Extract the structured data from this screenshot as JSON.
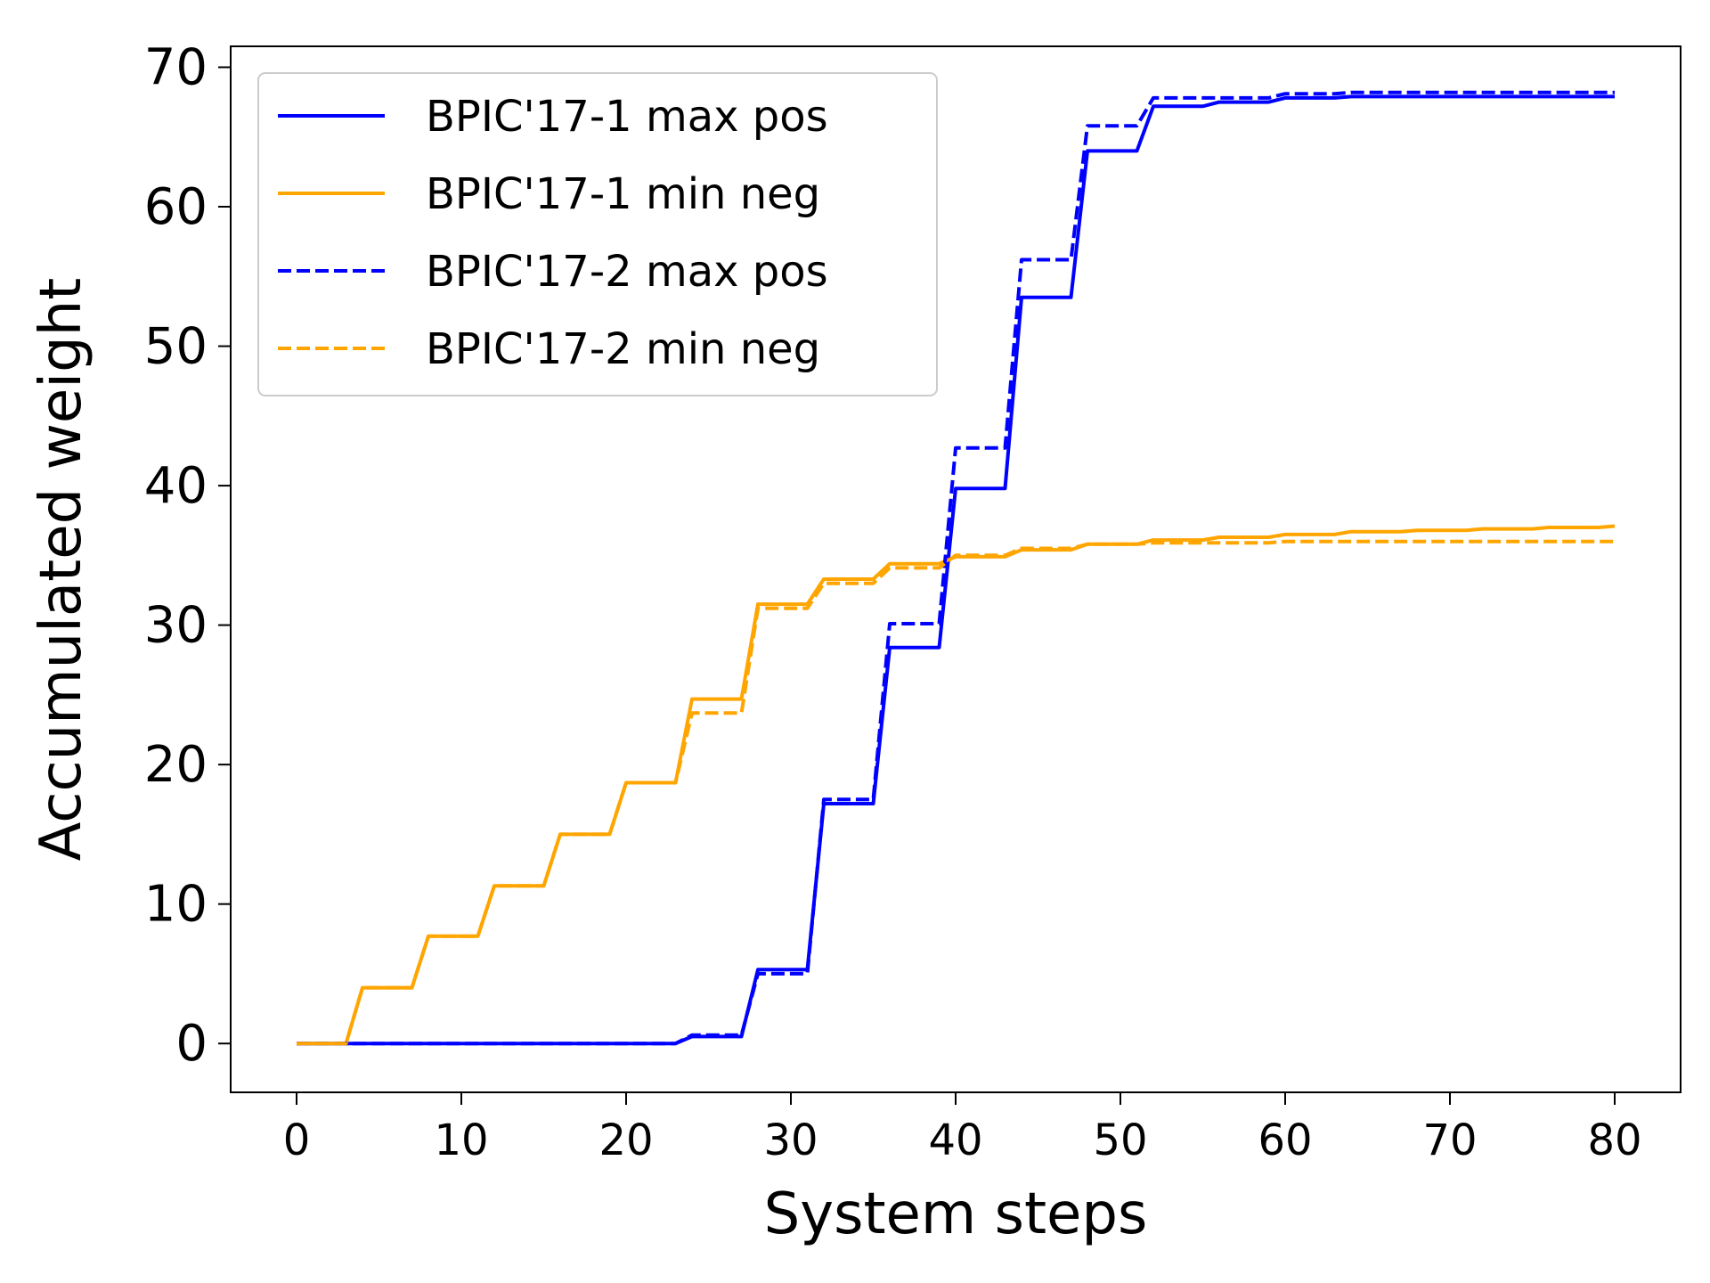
{
  "chart_data": {
    "type": "line",
    "xlabel": "System steps",
    "ylabel": "Accumulated weight",
    "xlim": [
      -4,
      84
    ],
    "ylim": [
      -3.5,
      71.5
    ],
    "xticks": [
      0,
      10,
      20,
      30,
      40,
      50,
      60,
      70,
      80
    ],
    "yticks": [
      0,
      10,
      20,
      30,
      40,
      50,
      60,
      70
    ],
    "grid": false,
    "legend_position": "top-left",
    "series": [
      {
        "name": "BPIC'17-1 max pos",
        "color": "#0000ff",
        "style": "solid",
        "points": [
          [
            0,
            0
          ],
          [
            23,
            0
          ],
          [
            24,
            0.5
          ],
          [
            27,
            0.5
          ],
          [
            28,
            5.3
          ],
          [
            31,
            5.3
          ],
          [
            32,
            17.2
          ],
          [
            35,
            17.2
          ],
          [
            36,
            28.4
          ],
          [
            39,
            28.4
          ],
          [
            40,
            39.8
          ],
          [
            43,
            39.8
          ],
          [
            44,
            53.5
          ],
          [
            47,
            53.5
          ],
          [
            48,
            64
          ],
          [
            51,
            64
          ],
          [
            52,
            67.2
          ],
          [
            55,
            67.2
          ],
          [
            56,
            67.5
          ],
          [
            59,
            67.5
          ],
          [
            60,
            67.8
          ],
          [
            63,
            67.8
          ],
          [
            64,
            67.9
          ],
          [
            80,
            67.9
          ]
        ]
      },
      {
        "name": "BPIC'17-1 min neg",
        "color": "#ffa500",
        "style": "solid",
        "points": [
          [
            0,
            0
          ],
          [
            3,
            0
          ],
          [
            4,
            4
          ],
          [
            7,
            4
          ],
          [
            8,
            7.7
          ],
          [
            11,
            7.7
          ],
          [
            12,
            11.3
          ],
          [
            15,
            11.3
          ],
          [
            16,
            15
          ],
          [
            19,
            15
          ],
          [
            20,
            18.7
          ],
          [
            23,
            18.7
          ],
          [
            24,
            24.7
          ],
          [
            27,
            24.7
          ],
          [
            28,
            31.5
          ],
          [
            31,
            31.5
          ],
          [
            32,
            33.3
          ],
          [
            35,
            33.3
          ],
          [
            36,
            34.4
          ],
          [
            39,
            34.4
          ],
          [
            40,
            34.9
          ],
          [
            43,
            34.9
          ],
          [
            44,
            35.4
          ],
          [
            47,
            35.4
          ],
          [
            48,
            35.8
          ],
          [
            51,
            35.8
          ],
          [
            52,
            36.1
          ],
          [
            55,
            36.1
          ],
          [
            56,
            36.3
          ],
          [
            59,
            36.3
          ],
          [
            60,
            36.5
          ],
          [
            63,
            36.5
          ],
          [
            64,
            36.7
          ],
          [
            67,
            36.7
          ],
          [
            68,
            36.8
          ],
          [
            71,
            36.8
          ],
          [
            72,
            36.9
          ],
          [
            75,
            36.9
          ],
          [
            76,
            37
          ],
          [
            79,
            37
          ],
          [
            80,
            37.1
          ]
        ]
      },
      {
        "name": "BPIC'17-2 max pos",
        "color": "#0000ff",
        "style": "dashed",
        "points": [
          [
            0,
            0
          ],
          [
            23,
            0
          ],
          [
            24,
            0.6
          ],
          [
            27,
            0.6
          ],
          [
            28,
            5
          ],
          [
            31,
            5
          ],
          [
            32,
            17.5
          ],
          [
            35,
            17.5
          ],
          [
            36,
            30.1
          ],
          [
            39,
            30.1
          ],
          [
            40,
            42.7
          ],
          [
            43,
            42.7
          ],
          [
            44,
            56.2
          ],
          [
            47,
            56.2
          ],
          [
            48,
            65.8
          ],
          [
            51,
            65.8
          ],
          [
            52,
            67.8
          ],
          [
            59,
            67.8
          ],
          [
            60,
            68.1
          ],
          [
            63,
            68.1
          ],
          [
            64,
            68.2
          ],
          [
            80,
            68.2
          ]
        ]
      },
      {
        "name": "BPIC'17-2 min neg",
        "color": "#ffa500",
        "style": "dashed",
        "points": [
          [
            0,
            0
          ],
          [
            3,
            0
          ],
          [
            4,
            4
          ],
          [
            7,
            4
          ],
          [
            8,
            7.7
          ],
          [
            11,
            7.7
          ],
          [
            12,
            11.3
          ],
          [
            15,
            11.3
          ],
          [
            16,
            15
          ],
          [
            19,
            15
          ],
          [
            20,
            18.7
          ],
          [
            23,
            18.7
          ],
          [
            24,
            23.7
          ],
          [
            27,
            23.7
          ],
          [
            28,
            31.2
          ],
          [
            31,
            31.2
          ],
          [
            32,
            33
          ],
          [
            35,
            33
          ],
          [
            36,
            34.1
          ],
          [
            39,
            34.1
          ],
          [
            40,
            35
          ],
          [
            43,
            35
          ],
          [
            44,
            35.5
          ],
          [
            47,
            35.5
          ],
          [
            48,
            35.8
          ],
          [
            51,
            35.8
          ],
          [
            52,
            35.9
          ],
          [
            59,
            35.9
          ],
          [
            60,
            36
          ],
          [
            80,
            36
          ]
        ]
      }
    ]
  }
}
